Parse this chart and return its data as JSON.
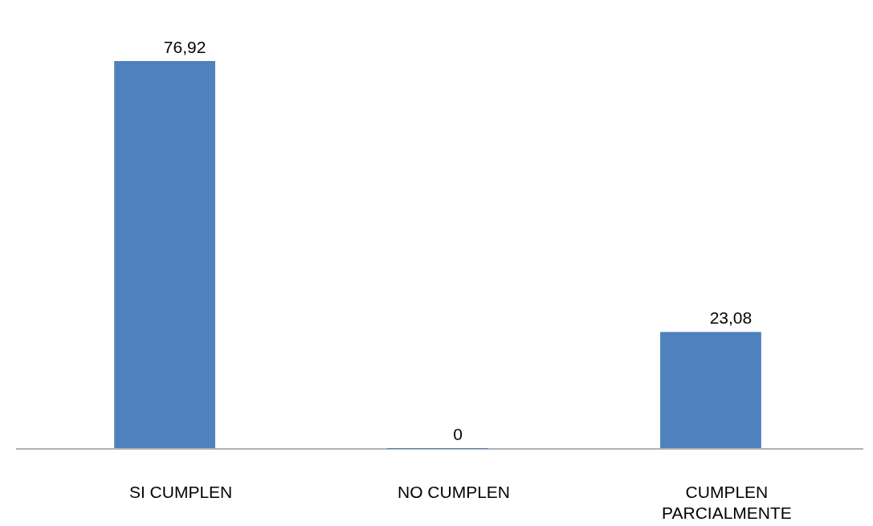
{
  "chart_data": {
    "type": "bar",
    "categories": [
      "SI CUMPLEN",
      "NO CUMPLEN",
      "CUMPLEN PARCIALMENTE"
    ],
    "values": [
      76.92,
      0,
      23.08
    ],
    "value_labels": [
      "76,92",
      "0",
      "23,08"
    ],
    "color": "#4f81bd"
  }
}
